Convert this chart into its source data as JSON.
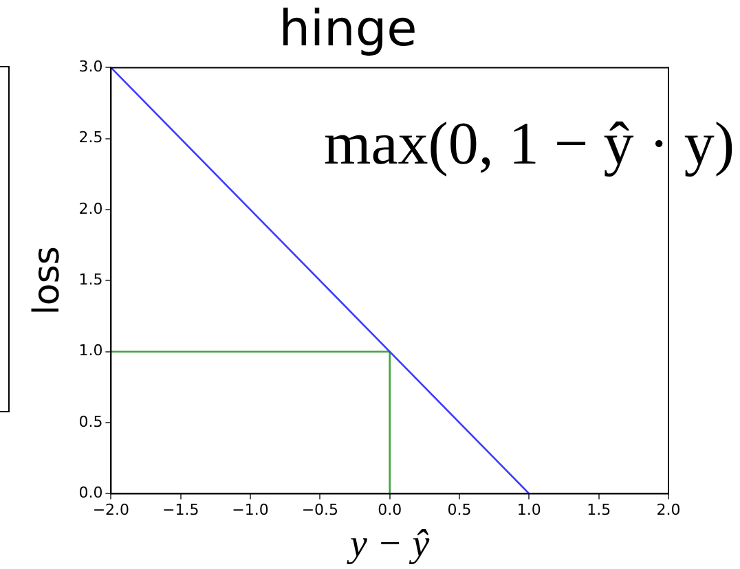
{
  "chart_data": {
    "type": "line",
    "title": "hinge",
    "xlabel": "y − ŷ",
    "ylabel": "loss",
    "annotations": [
      "max(0, 1 − ŷ · y)"
    ],
    "series": [
      {
        "color": "#3b3bff",
        "x": [
          -2,
          1
        ],
        "values": [
          3,
          0
        ]
      },
      {
        "color": "#3fa33f",
        "x": [
          -2,
          0,
          0
        ],
        "values": [
          1,
          1,
          0
        ]
      }
    ],
    "xlim": [
      -2,
      2
    ],
    "xticks": [
      {
        "value": -2,
        "label": "−2.0"
      },
      {
        "value": -1.5,
        "label": "−1.5"
      },
      {
        "value": -1,
        "label": "−1.0"
      },
      {
        "value": -0.5,
        "label": "−0.5"
      },
      {
        "value": 0,
        "label": "0.0"
      },
      {
        "value": 0.5,
        "label": "0.5"
      },
      {
        "value": 1,
        "label": "1.0"
      },
      {
        "value": 1.5,
        "label": "1.5"
      },
      {
        "value": 2,
        "label": "2.0"
      }
    ],
    "ylim": [
      0,
      3
    ],
    "yticks": [
      {
        "value": 0,
        "label": "0.0"
      },
      {
        "value": 0.5,
        "label": "0.5"
      },
      {
        "value": 1,
        "label": "1.0"
      },
      {
        "value": 1.5,
        "label": "1.5"
      },
      {
        "value": 2,
        "label": "2.0"
      },
      {
        "value": 2.5,
        "label": "2.5"
      },
      {
        "value": 3,
        "label": "3.0"
      }
    ],
    "grid": false,
    "legend": false,
    "marker": "none",
    "line_style": "solid"
  }
}
